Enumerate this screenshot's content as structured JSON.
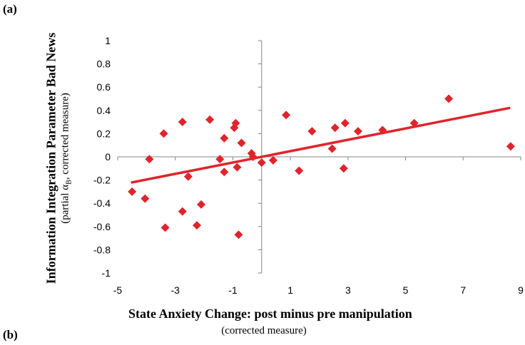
{
  "panel_labels": {
    "a": "(a)",
    "b": "(b)"
  },
  "chart_data": {
    "type": "scatter",
    "title": "",
    "xlabel": "State Anxiety Change: post minus pre manipulation",
    "xlabel_sub": "(corrected measure)",
    "ylabel": "Information Integration Parameter Bad News",
    "ylabel_sub_prefix": "(partial α",
    "ylabel_sub_subscript": "B",
    "ylabel_sub_suffix": ", corrected measure)",
    "xlim": [
      -5,
      9
    ],
    "ylim": [
      -1,
      1
    ],
    "x_ticks": [
      -5,
      -3,
      -1,
      1,
      3,
      5,
      7,
      9
    ],
    "y_ticks": [
      -1,
      -0.8,
      -0.6,
      -0.4,
      -0.2,
      0,
      0.2,
      0.4,
      0.6,
      0.8,
      1
    ],
    "y_tick_labels": [
      "-1",
      "-0.8",
      "-0.6",
      "-0.4",
      "-0.2",
      "0",
      "0.2",
      "0.4",
      "0.6",
      "0.8",
      "1"
    ],
    "grid": false,
    "marker": "diamond",
    "color": "#e0242b",
    "points": [
      [
        -4.5,
        -0.3
      ],
      [
        -4.05,
        -0.36
      ],
      [
        -3.9,
        -0.02
      ],
      [
        -3.4,
        0.2
      ],
      [
        -3.35,
        -0.61
      ],
      [
        -2.75,
        0.3
      ],
      [
        -2.75,
        -0.47
      ],
      [
        -2.55,
        -0.17
      ],
      [
        -2.25,
        -0.59
      ],
      [
        -2.1,
        -0.41
      ],
      [
        -1.8,
        0.32
      ],
      [
        -1.45,
        -0.02
      ],
      [
        -1.3,
        0.16
      ],
      [
        -1.3,
        -0.13
      ],
      [
        -0.95,
        0.25
      ],
      [
        -0.9,
        0.29
      ],
      [
        -0.85,
        -0.09
      ],
      [
        -0.8,
        -0.67
      ],
      [
        -0.7,
        0.12
      ],
      [
        -0.35,
        0.03
      ],
      [
        -0.3,
        0.0
      ],
      [
        0.0,
        -0.05
      ],
      [
        0.4,
        -0.03
      ],
      [
        0.85,
        0.36
      ],
      [
        1.3,
        -0.12
      ],
      [
        1.75,
        0.22
      ],
      [
        2.45,
        0.07
      ],
      [
        2.55,
        0.25
      ],
      [
        2.85,
        -0.1
      ],
      [
        2.9,
        0.29
      ],
      [
        3.35,
        0.22
      ],
      [
        4.2,
        0.23
      ],
      [
        5.3,
        0.29
      ],
      [
        6.5,
        0.5
      ],
      [
        8.65,
        0.09
      ]
    ],
    "trendline": {
      "x": [
        -4.5,
        8.6
      ],
      "y": [
        -0.22,
        0.42
      ]
    }
  }
}
